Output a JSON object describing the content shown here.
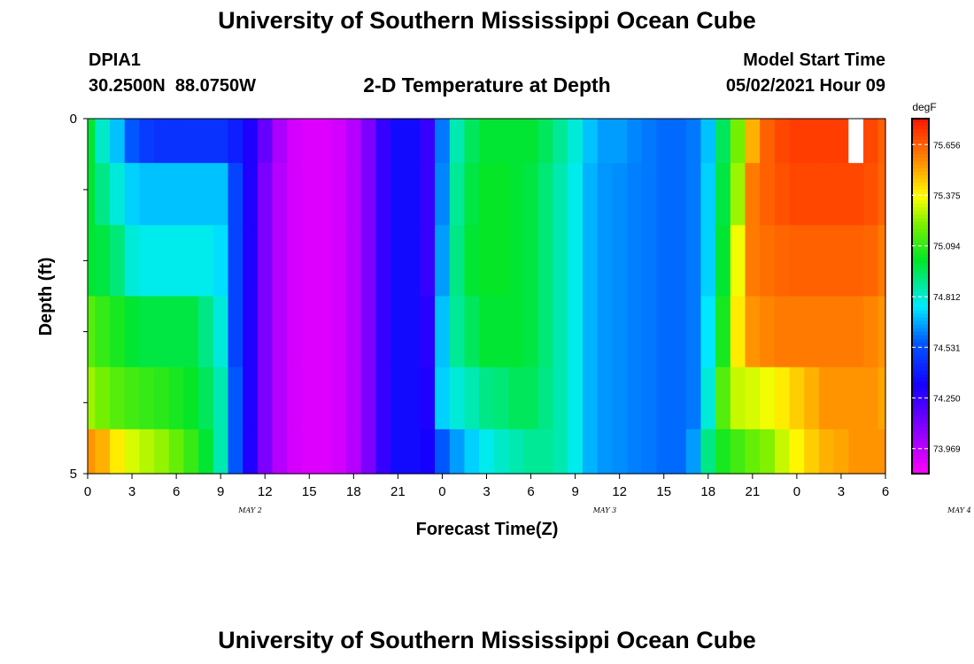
{
  "page": {
    "title_top": "University of Southern Mississippi Ocean Cube",
    "title_bottom": "University of Southern Mississippi Ocean Cube",
    "station_id": "DPIA1",
    "station_coords": "30.2500N  88.0750W",
    "plot_title": "2-D Temperature at Depth",
    "model_start_label": "Model Start Time",
    "model_start_value": "05/02/2021 Hour 09"
  },
  "chart_data": {
    "type": "heatmap",
    "title": "2-D Temperature at Depth",
    "xlabel": "Forecast Time(Z)",
    "ylabel": "Depth (ft)",
    "x_tick_labels": [
      "0",
      "3",
      "6",
      "9",
      "12",
      "15",
      "18",
      "21",
      "0",
      "3",
      "6",
      "9",
      "12",
      "15",
      "18",
      "21",
      "0",
      "3",
      "6"
    ],
    "date_labels": [
      "MAY 2",
      "MAY 3",
      "MAY 4"
    ],
    "x_range_hours": [
      0,
      54
    ],
    "y_tick_labels": [
      "0",
      "5"
    ],
    "ylim": [
      0,
      5
    ],
    "colorbar": {
      "unit": "degF",
      "ticks": [
        "75.656",
        "75.375",
        "75.094",
        "74.812",
        "74.531",
        "74.250",
        "73.969"
      ],
      "min": 73.83,
      "max": 75.8
    },
    "grid_hours": [
      0,
      1,
      2,
      3,
      4,
      5,
      6,
      7,
      8,
      9,
      10,
      11,
      12,
      13,
      14,
      15,
      16,
      17,
      18,
      19,
      20,
      21,
      22,
      23,
      24,
      25,
      26,
      27,
      28,
      29,
      30,
      31,
      32,
      33,
      34,
      35,
      36,
      37,
      38,
      39,
      40,
      41,
      42,
      43,
      44,
      45,
      46,
      47,
      48,
      49,
      50,
      51,
      52,
      53,
      54
    ],
    "layer_depths_ft": [
      0.25,
      1.0,
      2.0,
      3.0,
      4.0,
      4.75
    ],
    "values_degF": [
      [
        75.0,
        74.82,
        74.7,
        74.55,
        74.48,
        74.45,
        74.45,
        74.45,
        74.45,
        74.45,
        74.4,
        74.3,
        74.15,
        74.0,
        73.92,
        73.9,
        73.9,
        73.92,
        73.98,
        74.1,
        74.25,
        74.35,
        74.35,
        74.25,
        74.6,
        74.85,
        74.95,
        75.0,
        75.0,
        75.0,
        75.0,
        74.95,
        74.88,
        74.8,
        74.7,
        74.65,
        74.65,
        74.62,
        74.6,
        74.58,
        74.58,
        74.6,
        74.7,
        74.95,
        75.2,
        75.5,
        75.65,
        75.7,
        75.72,
        75.72,
        75.72,
        75.72,
        null,
        75.7,
        75.65
      ],
      [
        75.0,
        74.9,
        74.8,
        74.72,
        74.7,
        74.7,
        74.7,
        74.7,
        74.7,
        74.7,
        74.5,
        74.3,
        74.1,
        73.98,
        73.92,
        73.9,
        73.9,
        73.92,
        73.98,
        74.1,
        74.25,
        74.35,
        74.35,
        74.25,
        74.62,
        74.88,
        74.98,
        75.02,
        75.02,
        75.0,
        74.98,
        74.92,
        74.85,
        74.78,
        74.68,
        74.64,
        74.63,
        74.61,
        74.6,
        74.58,
        74.58,
        74.6,
        74.72,
        74.98,
        75.25,
        75.6,
        75.65,
        75.68,
        75.7,
        75.7,
        75.7,
        75.7,
        75.7,
        75.68,
        75.64
      ],
      [
        75.0,
        74.98,
        74.92,
        74.8,
        74.78,
        74.78,
        74.78,
        74.78,
        74.78,
        74.74,
        74.5,
        74.3,
        74.1,
        73.98,
        73.92,
        73.9,
        73.9,
        73.92,
        73.98,
        74.1,
        74.25,
        74.35,
        74.35,
        74.25,
        74.65,
        74.9,
        75.0,
        75.02,
        75.02,
        75.0,
        74.98,
        74.92,
        74.85,
        74.78,
        74.68,
        74.64,
        74.63,
        74.61,
        74.6,
        74.58,
        74.58,
        74.6,
        74.72,
        75.0,
        75.35,
        75.6,
        75.62,
        75.64,
        75.65,
        75.65,
        75.65,
        75.65,
        75.65,
        75.64,
        75.6
      ],
      [
        75.15,
        75.1,
        75.05,
        75.0,
        74.98,
        74.98,
        74.98,
        74.98,
        74.9,
        74.8,
        74.5,
        74.3,
        74.1,
        73.98,
        73.92,
        73.9,
        73.9,
        73.92,
        73.98,
        74.1,
        74.25,
        74.35,
        74.35,
        74.28,
        74.7,
        74.88,
        74.95,
        75.0,
        75.0,
        75.0,
        74.98,
        74.92,
        74.85,
        74.78,
        74.68,
        74.64,
        74.63,
        74.61,
        74.6,
        74.58,
        74.58,
        74.6,
        74.75,
        75.05,
        75.4,
        75.55,
        75.58,
        75.6,
        75.6,
        75.6,
        75.6,
        75.6,
        75.6,
        75.58,
        75.55
      ],
      [
        75.25,
        75.2,
        75.15,
        75.12,
        75.1,
        75.08,
        75.05,
        75.02,
        74.95,
        74.85,
        74.55,
        74.3,
        74.1,
        73.98,
        73.92,
        73.9,
        73.9,
        73.92,
        73.98,
        74.1,
        74.25,
        74.35,
        74.35,
        74.3,
        74.72,
        74.8,
        74.85,
        74.9,
        74.92,
        74.95,
        74.95,
        74.9,
        74.85,
        74.78,
        74.68,
        74.64,
        74.63,
        74.61,
        74.6,
        74.58,
        74.58,
        74.6,
        74.8,
        75.15,
        75.3,
        75.32,
        75.35,
        75.4,
        75.45,
        75.5,
        75.55,
        75.55,
        75.55,
        75.55,
        75.52
      ],
      [
        75.55,
        75.5,
        75.4,
        75.32,
        75.28,
        75.24,
        75.18,
        75.1,
        75.0,
        74.85,
        74.55,
        74.3,
        74.1,
        73.98,
        73.92,
        73.9,
        73.9,
        73.92,
        73.98,
        74.1,
        74.25,
        74.35,
        74.35,
        74.32,
        74.55,
        74.65,
        74.72,
        74.78,
        74.82,
        74.85,
        74.88,
        74.88,
        74.85,
        74.78,
        74.68,
        74.64,
        74.63,
        74.61,
        74.6,
        74.58,
        74.58,
        74.65,
        74.9,
        75.05,
        75.12,
        75.18,
        75.22,
        75.3,
        75.38,
        75.45,
        75.5,
        75.52,
        75.55,
        75.55,
        75.55
      ]
    ]
  },
  "colors": {
    "missing": "#ffffff",
    "axis": "#000000"
  }
}
